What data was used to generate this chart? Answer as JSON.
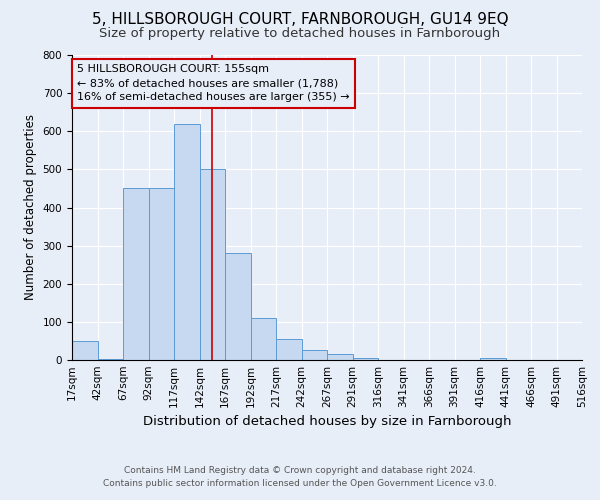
{
  "title": "5, HILLSBOROUGH COURT, FARNBOROUGH, GU14 9EQ",
  "subtitle": "Size of property relative to detached houses in Farnborough",
  "xlabel": "Distribution of detached houses by size in Farnborough",
  "ylabel": "Number of detached properties",
  "bin_labels": [
    "17sqm",
    "42sqm",
    "67sqm",
    "92sqm",
    "117sqm",
    "142sqm",
    "167sqm",
    "192sqm",
    "217sqm",
    "242sqm",
    "267sqm",
    "291sqm",
    "316sqm",
    "341sqm",
    "366sqm",
    "391sqm",
    "416sqm",
    "441sqm",
    "466sqm",
    "491sqm",
    "516sqm"
  ],
  "bar_heights": [
    50,
    2,
    450,
    450,
    620,
    500,
    280,
    110,
    55,
    25,
    15,
    5,
    0,
    0,
    0,
    0,
    5,
    0,
    0,
    0
  ],
  "bar_color": "#c6d9f1",
  "bar_edge_color": "#5b9bd5",
  "vline_x": 5.5,
  "vline_color": "#cc0000",
  "ylim": [
    0,
    800
  ],
  "yticks": [
    0,
    100,
    200,
    300,
    400,
    500,
    600,
    700,
    800
  ],
  "annotation_text": "5 HILLSBOROUGH COURT: 155sqm\n← 83% of detached houses are smaller (1,788)\n16% of semi-detached houses are larger (355) →",
  "annotation_box_color": "#cc0000",
  "footnote1": "Contains HM Land Registry data © Crown copyright and database right 2024.",
  "footnote2": "Contains public sector information licensed under the Open Government Licence v3.0.",
  "background_color": "#e8eef8",
  "grid_color": "#ffffff",
  "title_fontsize": 11,
  "subtitle_fontsize": 9.5,
  "xlabel_fontsize": 9.5,
  "ylabel_fontsize": 8.5,
  "annotation_fontsize": 8,
  "tick_fontsize": 7.5,
  "footnote_fontsize": 6.5
}
